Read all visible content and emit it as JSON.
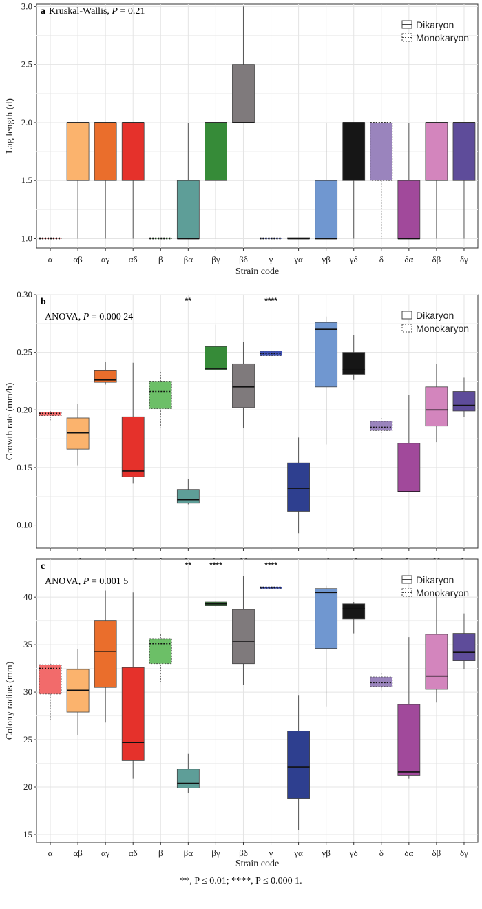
{
  "footnote": "**, P ≤ 0.01; ****, P ≤ 0.000 1.",
  "legend": {
    "dikaryon": "Dikaryon",
    "monokaryon": "Monokaryon"
  },
  "chart_data": [
    {
      "type": "box",
      "panel_label": "a",
      "title_prefix": "Kruskal-Wallis, ",
      "title_p": "P",
      "title_suffix": " = 0.21",
      "xlabel": "Strain code",
      "ylabel": "Lag length (d)",
      "ylim": [
        0.92,
        3.02
      ],
      "yticks": [
        "1.0",
        "1.5",
        "2.0",
        "2.5",
        "3.0"
      ],
      "ytick_values": [
        1.0,
        1.5,
        2.0,
        2.5,
        3.0
      ],
      "grid": true,
      "legend_position": "top-right",
      "categories": [
        "α",
        "αβ",
        "αγ",
        "αδ",
        "β",
        "βα",
        "βγ",
        "βδ",
        "γ",
        "γα",
        "γβ",
        "γδ",
        "δ",
        "δα",
        "δβ",
        "δγ"
      ],
      "boxes": [
        {
          "min": 1.0,
          "q1": 1.0,
          "median": 1.0,
          "q3": 1.0,
          "max": 1.0,
          "type": "monokaryon",
          "color": "#f26b6b"
        },
        {
          "min": 1.0,
          "q1": 1.5,
          "median": 2.0,
          "q3": 2.0,
          "max": 2.0,
          "type": "dikaryon",
          "color": "#fbb36d"
        },
        {
          "min": 1.0,
          "q1": 1.5,
          "median": 2.0,
          "q3": 2.0,
          "max": 2.0,
          "type": "dikaryon",
          "color": "#ea6e2c"
        },
        {
          "min": 1.0,
          "q1": 1.5,
          "median": 2.0,
          "q3": 2.0,
          "max": 2.0,
          "type": "dikaryon",
          "color": "#e5312b"
        },
        {
          "min": 1.0,
          "q1": 1.0,
          "median": 1.0,
          "q3": 1.0,
          "max": 1.0,
          "type": "monokaryon",
          "color": "#6cbf67"
        },
        {
          "min": 1.0,
          "q1": 1.0,
          "median": 1.0,
          "q3": 1.5,
          "max": 2.0,
          "type": "dikaryon",
          "color": "#5e9e98"
        },
        {
          "min": 1.0,
          "q1": 1.5,
          "median": 2.0,
          "q3": 2.0,
          "max": 2.0,
          "type": "dikaryon",
          "color": "#368b38"
        },
        {
          "min": 2.0,
          "q1": 2.0,
          "median": 2.0,
          "q3": 2.5,
          "max": 3.0,
          "type": "dikaryon",
          "color": "#7f7a7c"
        },
        {
          "min": 1.0,
          "q1": 1.0,
          "median": 1.0,
          "q3": 1.0,
          "max": 1.0,
          "type": "monokaryon",
          "color": "#3f51b5"
        },
        {
          "min": 1.0,
          "q1": 1.0,
          "median": 1.0,
          "q3": 1.0,
          "max": 1.0,
          "type": "dikaryon",
          "color": "#2e3f8f"
        },
        {
          "min": 1.0,
          "q1": 1.0,
          "median": 1.0,
          "q3": 1.5,
          "max": 2.0,
          "type": "dikaryon",
          "color": "#7097d0"
        },
        {
          "min": 1.0,
          "q1": 1.5,
          "median": 2.0,
          "q3": 2.0,
          "max": 2.0,
          "type": "dikaryon",
          "color": "#161616"
        },
        {
          "min": 1.0,
          "q1": 1.5,
          "median": 2.0,
          "q3": 2.0,
          "max": 2.0,
          "type": "monokaryon",
          "color": "#9a84bd"
        },
        {
          "min": 1.0,
          "q1": 1.0,
          "median": 1.0,
          "q3": 1.5,
          "max": 2.0,
          "type": "dikaryon",
          "color": "#a1499b"
        },
        {
          "min": 1.0,
          "q1": 1.5,
          "median": 2.0,
          "q3": 2.0,
          "max": 2.0,
          "type": "dikaryon",
          "color": "#d385bd"
        },
        {
          "min": 1.0,
          "q1": 1.5,
          "median": 2.0,
          "q3": 2.0,
          "max": 2.0,
          "type": "dikaryon",
          "color": "#5e4c9a"
        }
      ],
      "significance": []
    },
    {
      "type": "box",
      "panel_label": "b",
      "title_prefix": "ANOVA, ",
      "title_p": "P",
      "title_suffix": " = 0.000 24",
      "xlabel": "Strain code",
      "ylabel": "Growth rate (mm/h)",
      "ylim": [
        0.08,
        0.3
      ],
      "yticks": [
        "0.10",
        "0.15",
        "0.20",
        "0.25",
        "0.30"
      ],
      "ytick_values": [
        0.1,
        0.15,
        0.2,
        0.25,
        0.3
      ],
      "grid": true,
      "legend_position": "top-right",
      "categories": [
        "α",
        "αβ",
        "αγ",
        "αδ",
        "β",
        "βα",
        "βγ",
        "βδ",
        "γ",
        "γα",
        "γβ",
        "γδ",
        "δ",
        "δα",
        "δβ",
        "δγ"
      ],
      "boxes": [
        {
          "min": 0.191,
          "q1": 0.195,
          "median": 0.197,
          "q3": 0.198,
          "max": 0.199,
          "type": "monokaryon",
          "color": "#f26b6b"
        },
        {
          "min": 0.152,
          "q1": 0.166,
          "median": 0.18,
          "q3": 0.193,
          "max": 0.205,
          "type": "dikaryon",
          "color": "#fbb36d"
        },
        {
          "min": 0.222,
          "q1": 0.224,
          "median": 0.226,
          "q3": 0.234,
          "max": 0.242,
          "type": "dikaryon",
          "color": "#ea6e2c"
        },
        {
          "min": 0.136,
          "q1": 0.142,
          "median": 0.147,
          "q3": 0.194,
          "max": 0.241,
          "type": "dikaryon",
          "color": "#e5312b"
        },
        {
          "min": 0.185,
          "q1": 0.201,
          "median": 0.216,
          "q3": 0.225,
          "max": 0.233,
          "type": "monokaryon",
          "color": "#6cbf67"
        },
        {
          "min": 0.118,
          "q1": 0.119,
          "median": 0.122,
          "q3": 0.131,
          "max": 0.14,
          "type": "dikaryon",
          "color": "#5e9e98"
        },
        {
          "min": 0.235,
          "q1": 0.235,
          "median": 0.236,
          "q3": 0.255,
          "max": 0.274,
          "type": "dikaryon",
          "color": "#368b38"
        },
        {
          "min": 0.184,
          "q1": 0.202,
          "median": 0.22,
          "q3": 0.24,
          "max": 0.259,
          "type": "dikaryon",
          "color": "#7f7a7c"
        },
        {
          "min": 0.246,
          "q1": 0.247,
          "median": 0.249,
          "q3": 0.251,
          "max": 0.252,
          "type": "monokaryon",
          "color": "#3f51b5"
        },
        {
          "min": 0.093,
          "q1": 0.112,
          "median": 0.132,
          "q3": 0.154,
          "max": 0.176,
          "type": "dikaryon",
          "color": "#2e3f8f"
        },
        {
          "min": 0.17,
          "q1": 0.22,
          "median": 0.27,
          "q3": 0.276,
          "max": 0.281,
          "type": "dikaryon",
          "color": "#7097d0"
        },
        {
          "min": 0.226,
          "q1": 0.231,
          "median": 0.235,
          "q3": 0.25,
          "max": 0.265,
          "type": "dikaryon",
          "color": "#161616"
        },
        {
          "min": 0.179,
          "q1": 0.182,
          "median": 0.185,
          "q3": 0.19,
          "max": 0.193,
          "type": "monokaryon",
          "color": "#9a84bd"
        },
        {
          "min": 0.129,
          "q1": 0.129,
          "median": 0.129,
          "q3": 0.171,
          "max": 0.213,
          "type": "dikaryon",
          "color": "#a1499b"
        },
        {
          "min": 0.172,
          "q1": 0.186,
          "median": 0.2,
          "q3": 0.22,
          "max": 0.24,
          "type": "dikaryon",
          "color": "#d385bd"
        },
        {
          "min": 0.194,
          "q1": 0.199,
          "median": 0.204,
          "q3": 0.216,
          "max": 0.228,
          "type": "dikaryon",
          "color": "#5e4c9a"
        }
      ],
      "significance": [
        {
          "category": "βα",
          "label": "**"
        },
        {
          "category": "γ",
          "label": "****"
        }
      ]
    },
    {
      "type": "box",
      "panel_label": "c",
      "title_prefix": "ANOVA, ",
      "title_p": "P",
      "title_suffix": " = 0.001 5",
      "xlabel": "Strain code",
      "ylabel": "Colony radius (mm)",
      "ylim": [
        14.2,
        44.0
      ],
      "yticks": [
        "15",
        "20",
        "25",
        "30",
        "35",
        "40"
      ],
      "ytick_values": [
        15,
        20,
        25,
        30,
        35,
        40
      ],
      "grid": true,
      "legend_position": "top-right",
      "categories": [
        "α",
        "αβ",
        "αγ",
        "αδ",
        "β",
        "βα",
        "βγ",
        "βδ",
        "γ",
        "γα",
        "γβ",
        "γδ",
        "δ",
        "δα",
        "δβ",
        "δγ"
      ],
      "boxes": [
        {
          "min": 27.0,
          "q1": 29.8,
          "median": 32.5,
          "q3": 32.9,
          "max": 33.0,
          "type": "monokaryon",
          "color": "#f26b6b"
        },
        {
          "min": 25.5,
          "q1": 27.9,
          "median": 30.2,
          "q3": 32.4,
          "max": 34.5,
          "type": "dikaryon",
          "color": "#fbb36d"
        },
        {
          "min": 26.8,
          "q1": 30.5,
          "median": 34.3,
          "q3": 37.5,
          "max": 40.7,
          "type": "dikaryon",
          "color": "#ea6e2c"
        },
        {
          "min": 20.9,
          "q1": 22.8,
          "median": 24.7,
          "q3": 32.6,
          "max": 40.5,
          "type": "dikaryon",
          "color": "#e5312b"
        },
        {
          "min": 31.1,
          "q1": 33.0,
          "median": 35.1,
          "q3": 35.6,
          "max": 36.1,
          "type": "monokaryon",
          "color": "#6cbf67"
        },
        {
          "min": 19.4,
          "q1": 19.9,
          "median": 20.4,
          "q3": 21.9,
          "max": 23.5,
          "type": "dikaryon",
          "color": "#5e9e98"
        },
        {
          "min": 39.0,
          "q1": 39.1,
          "median": 39.3,
          "q3": 39.5,
          "max": 39.6,
          "type": "dikaryon",
          "color": "#368b38"
        },
        {
          "min": 30.8,
          "q1": 33.0,
          "median": 35.3,
          "q3": 38.7,
          "max": 42.2,
          "type": "dikaryon",
          "color": "#7f7a7c"
        },
        {
          "min": 40.8,
          "q1": 40.9,
          "median": 41.0,
          "q3": 41.1,
          "max": 41.2,
          "type": "monokaryon",
          "color": "#3f51b5"
        },
        {
          "min": 15.5,
          "q1": 18.8,
          "median": 22.1,
          "q3": 25.9,
          "max": 29.7,
          "type": "dikaryon",
          "color": "#2e3f8f"
        },
        {
          "min": 28.5,
          "q1": 34.6,
          "median": 40.5,
          "q3": 40.9,
          "max": 41.2,
          "type": "dikaryon",
          "color": "#7097d0"
        },
        {
          "min": 36.2,
          "q1": 37.7,
          "median": 38.8,
          "q3": 39.3,
          "max": 39.5,
          "type": "dikaryon",
          "color": "#161616"
        },
        {
          "min": 30.2,
          "q1": 30.6,
          "median": 31.0,
          "q3": 31.6,
          "max": 32.0,
          "type": "monokaryon",
          "color": "#9a84bd"
        },
        {
          "min": 20.9,
          "q1": 21.2,
          "median": 21.6,
          "q3": 28.7,
          "max": 35.8,
          "type": "dikaryon",
          "color": "#a1499b"
        },
        {
          "min": 28.9,
          "q1": 30.3,
          "median": 31.7,
          "q3": 36.1,
          "max": 40.4,
          "type": "dikaryon",
          "color": "#d385bd"
        },
        {
          "min": 32.4,
          "q1": 33.3,
          "median": 34.2,
          "q3": 36.2,
          "max": 38.3,
          "type": "dikaryon",
          "color": "#5e4c9a"
        }
      ],
      "significance": [
        {
          "category": "βα",
          "label": "**"
        },
        {
          "category": "βγ",
          "label": "****"
        },
        {
          "category": "γ",
          "label": "****"
        }
      ]
    }
  ]
}
